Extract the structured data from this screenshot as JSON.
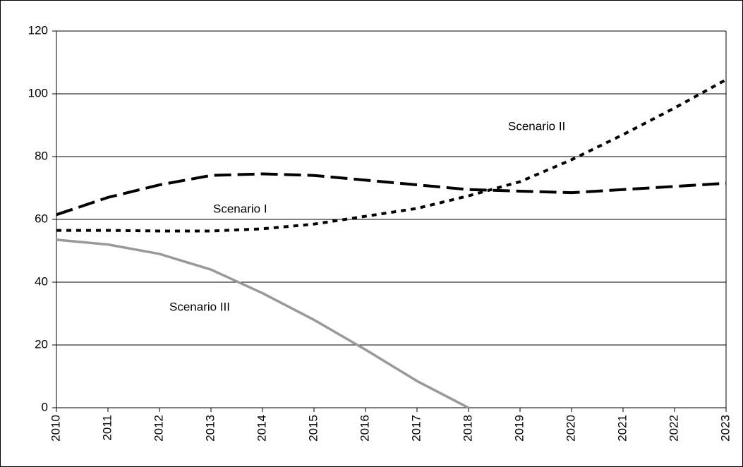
{
  "chart_data": {
    "type": "line",
    "categories": [
      "2010",
      "2011",
      "2012",
      "2013",
      "2014",
      "2015",
      "2016",
      "2017",
      "2018",
      "2019",
      "2020",
      "2021",
      "2022",
      "2023"
    ],
    "series": [
      {
        "name": "Scenario I",
        "color": "#000000",
        "dash": "24,9",
        "values": [
          61.5,
          67,
          71,
          74,
          74.5,
          74,
          72.5,
          71,
          69.5,
          69,
          68.5,
          69.5,
          70.5,
          71.5
        ]
      },
      {
        "name": "Scenario II",
        "color": "#000000",
        "dash": "7,7",
        "values": [
          56.5,
          56.5,
          56.3,
          56.3,
          57,
          58.5,
          61,
          63.5,
          67.5,
          72,
          79,
          87,
          95.5,
          104.5
        ]
      },
      {
        "name": "Scenario III",
        "color": "#999999",
        "values": [
          53.5,
          52,
          49,
          44,
          36.5,
          28,
          18.5,
          8.5,
          0,
          null,
          null,
          null,
          null,
          null
        ]
      }
    ],
    "ylim": [
      0,
      120
    ],
    "yticks": [
      0,
      20,
      40,
      60,
      80,
      100,
      120
    ],
    "grid": true
  }
}
